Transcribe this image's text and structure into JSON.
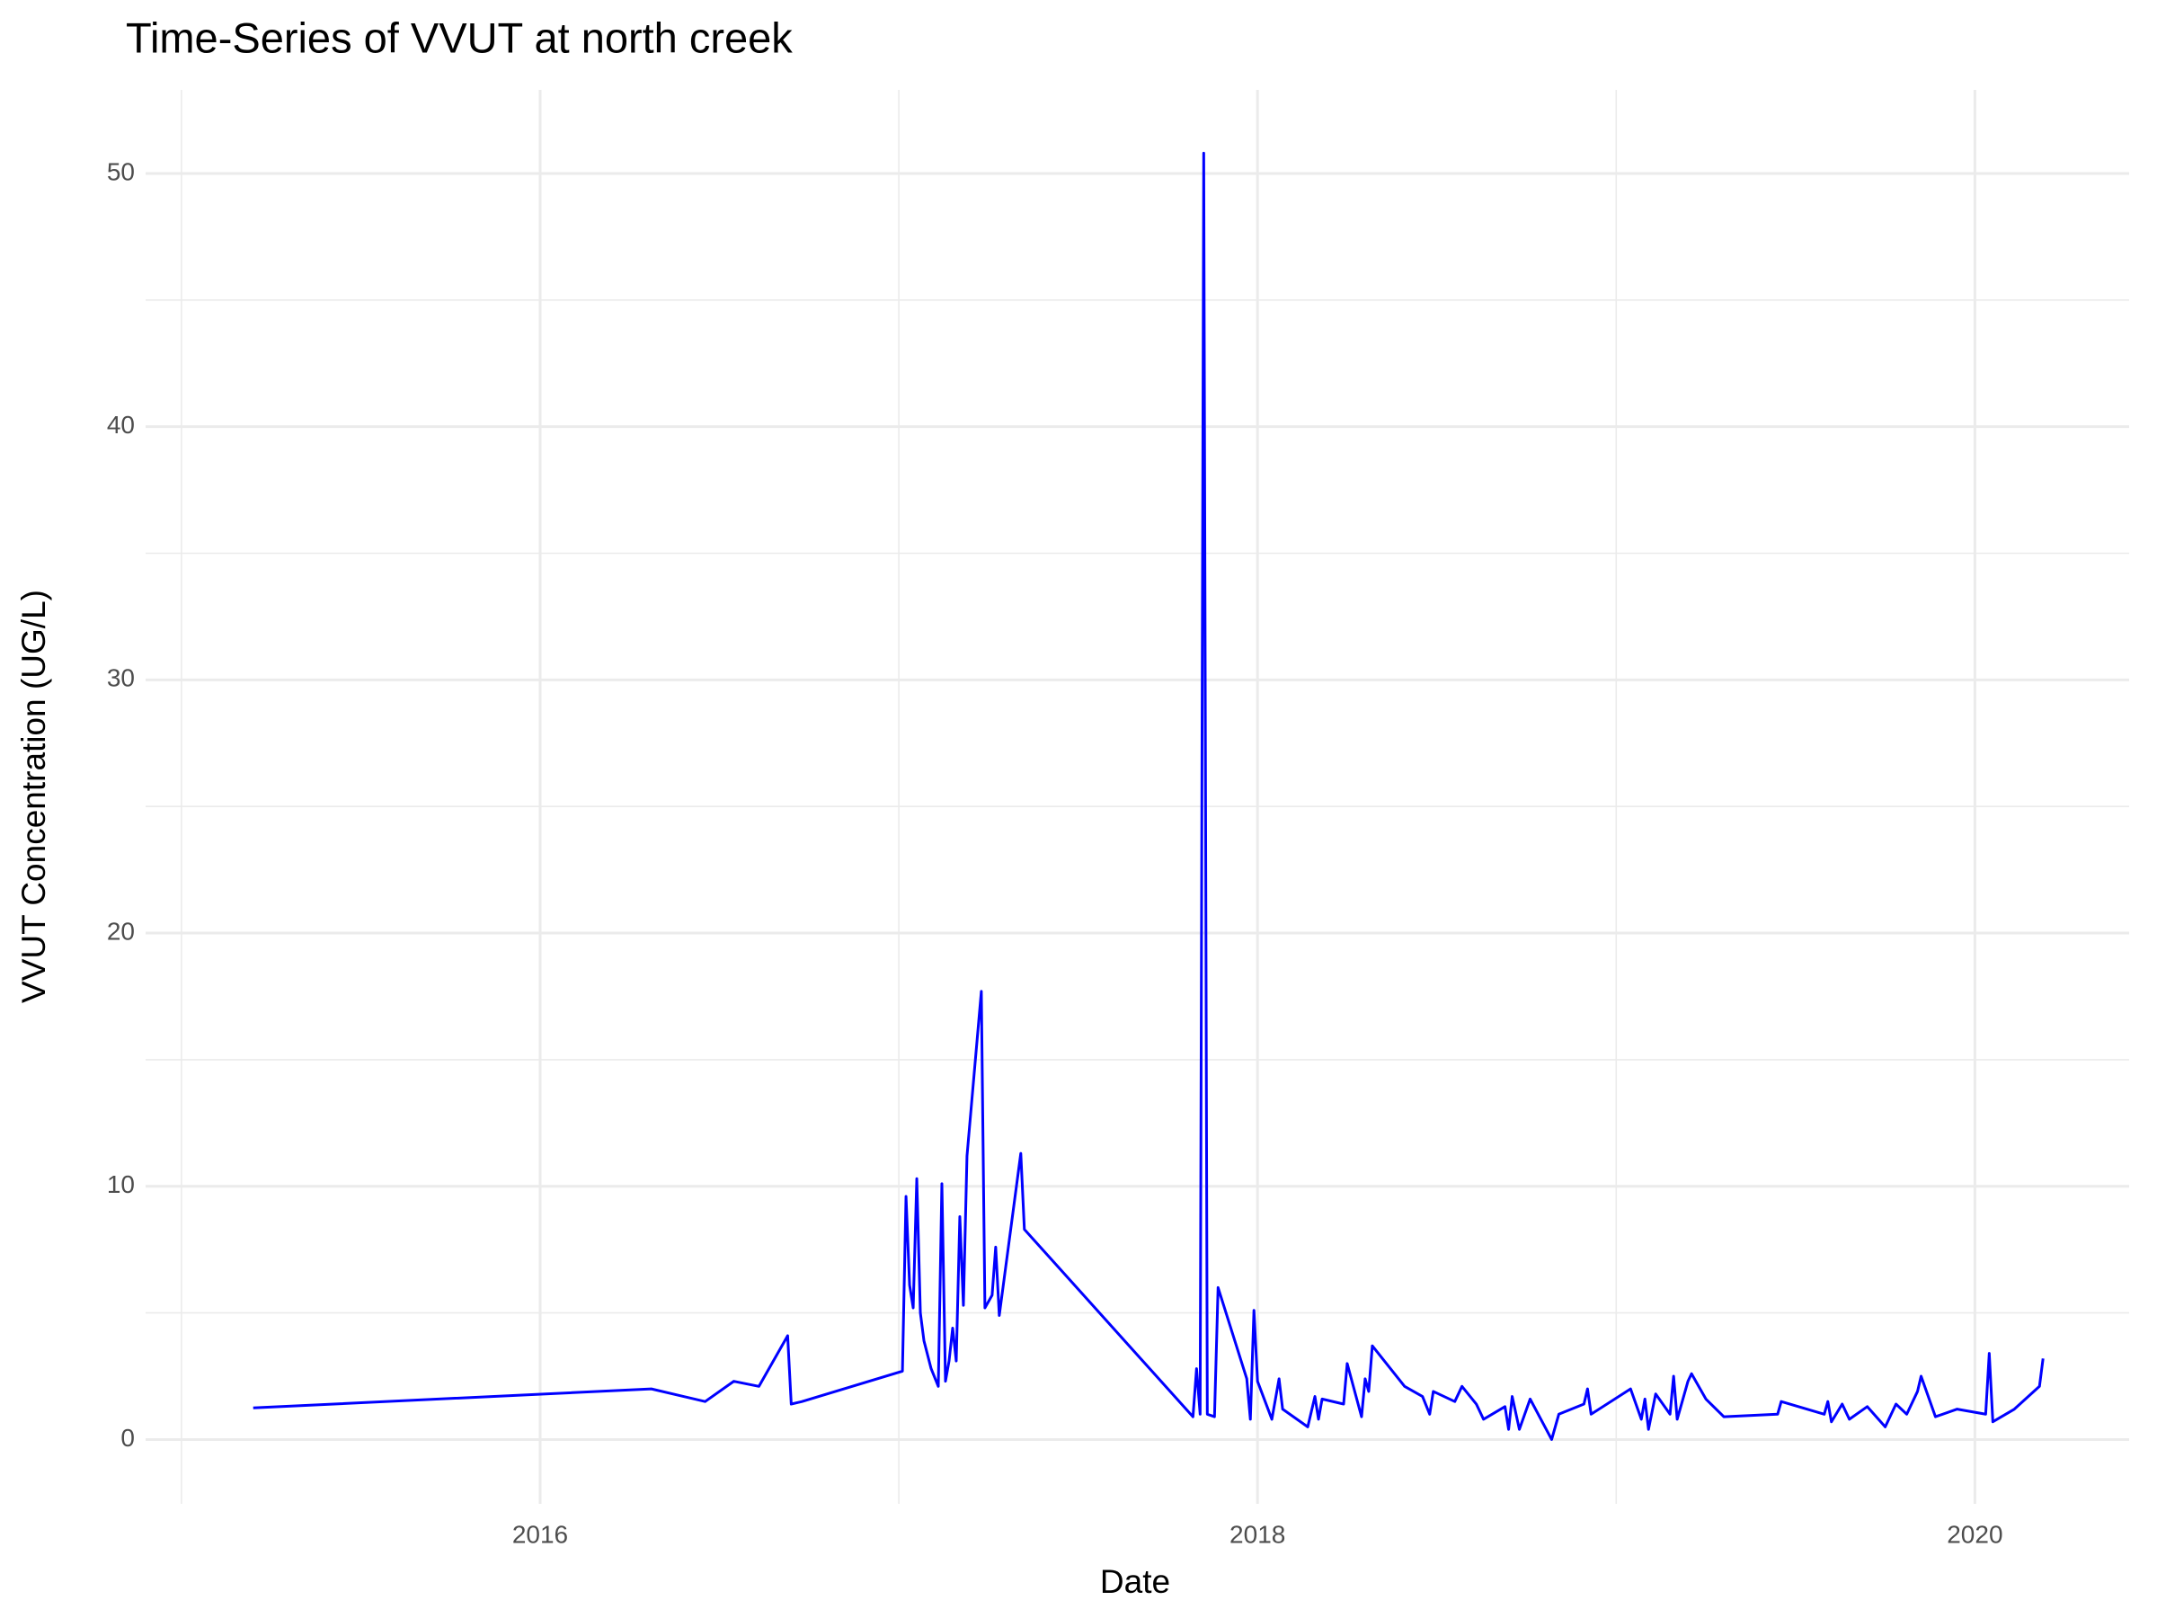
{
  "chart_data": {
    "type": "line",
    "title": "Time-Series of VVUT at north creek",
    "x_label": "Date",
    "y_label": "VVUT Concentration (UG/L)",
    "color": "#0000ff",
    "grid": true,
    "xlim": [
      2014.9,
      2020.43
    ],
    "xticks": [
      2016,
      2018,
      2020
    ],
    "xminorticks": [
      2015,
      2017,
      2019
    ],
    "ylim": [
      -2.54,
      53.3
    ],
    "yticks": [
      0,
      10,
      20,
      30,
      40,
      50
    ],
    "yminorticks": [
      5,
      15,
      25,
      35,
      45
    ],
    "x": [
      2015.2,
      2016.31,
      2016.46,
      2016.54,
      2016.61,
      2016.69,
      2016.7,
      2016.73,
      2017.01,
      2017.02,
      2017.03,
      2017.04,
      2017.05,
      2017.06,
      2017.07,
      2017.09,
      2017.11,
      2017.12,
      2017.13,
      2017.14,
      2017.15,
      2017.16,
      2017.17,
      2017.18,
      2017.19,
      2017.23,
      2017.24,
      2017.26,
      2017.27,
      2017.28,
      2017.34,
      2017.35,
      2017.82,
      2017.83,
      2017.84,
      2017.85,
      2017.86,
      2017.88,
      2017.89,
      2017.97,
      2017.98,
      2017.99,
      2018.0,
      2018.04,
      2018.06,
      2018.07,
      2018.14,
      2018.16,
      2018.17,
      2018.18,
      2018.24,
      2018.25,
      2018.29,
      2018.3,
      2018.31,
      2018.32,
      2018.41,
      2018.46,
      2018.48,
      2018.49,
      2018.55,
      2018.57,
      2018.61,
      2018.63,
      2018.69,
      2018.7,
      2018.71,
      2018.73,
      2018.76,
      2018.82,
      2018.84,
      2018.91,
      2018.92,
      2018.93,
      2019.04,
      2019.07,
      2019.08,
      2019.09,
      2019.11,
      2019.15,
      2019.16,
      2019.17,
      2019.2,
      2019.21,
      2019.25,
      2019.3,
      2019.45,
      2019.46,
      2019.58,
      2019.59,
      2019.6,
      2019.63,
      2019.65,
      2019.7,
      2019.75,
      2019.78,
      2019.81,
      2019.84,
      2019.85,
      2019.89,
      2019.95,
      2020.03,
      2020.04,
      2020.05,
      2020.11,
      2020.18,
      2020.19
    ],
    "values": [
      1.25,
      2.0,
      1.5,
      2.3,
      2.1,
      4.1,
      1.4,
      1.5,
      2.7,
      9.6,
      6.1,
      5.2,
      10.3,
      5.0,
      3.9,
      2.8,
      2.1,
      10.1,
      2.3,
      3.1,
      4.4,
      3.1,
      8.8,
      5.3,
      11.2,
      17.7,
      5.2,
      5.7,
      7.6,
      4.9,
      11.3,
      8.3,
      0.9,
      2.8,
      1.0,
      50.8,
      1.0,
      0.9,
      6.0,
      2.4,
      0.8,
      5.1,
      2.3,
      0.8,
      2.4,
      1.2,
      0.5,
      1.7,
      0.8,
      1.6,
      1.4,
      3.0,
      0.9,
      2.4,
      1.9,
      3.7,
      2.1,
      1.7,
      1.0,
      1.9,
      1.5,
      2.1,
      1.4,
      0.8,
      1.3,
      0.4,
      1.7,
      0.4,
      1.6,
      0.0,
      1.0,
      1.4,
      2.0,
      1.0,
      2.0,
      0.8,
      1.6,
      0.4,
      1.8,
      1.0,
      2.5,
      0.8,
      2.3,
      2.6,
      1.6,
      0.9,
      1.0,
      1.5,
      1.0,
      1.5,
      0.7,
      1.4,
      0.8,
      1.3,
      0.5,
      1.4,
      1.0,
      1.9,
      2.5,
      0.9,
      1.2,
      1.0,
      3.4,
      0.7,
      1.2,
      2.1,
      3.2
    ]
  }
}
